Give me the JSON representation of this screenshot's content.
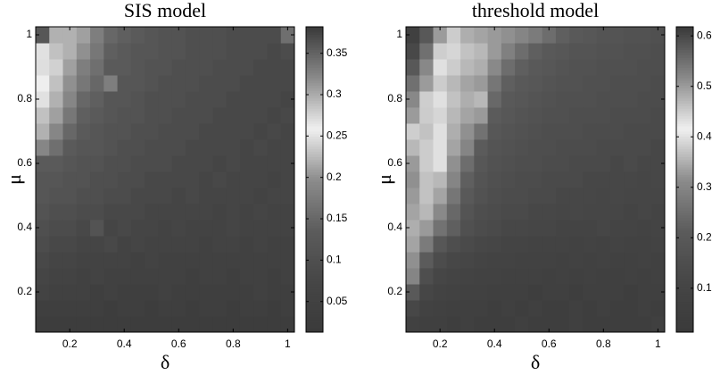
{
  "chart_data": [
    {
      "type": "heatmap",
      "title": "SIS model",
      "xlabel": "δ",
      "ylabel": "μ",
      "x": [
        0.1,
        0.15,
        0.2,
        0.25,
        0.3,
        0.35,
        0.4,
        0.45,
        0.5,
        0.55,
        0.6,
        0.65,
        0.7,
        0.75,
        0.8,
        0.85,
        0.9,
        0.95,
        1.0
      ],
      "y": [
        0.1,
        0.15,
        0.2,
        0.25,
        0.3,
        0.35,
        0.4,
        0.45,
        0.5,
        0.55,
        0.6,
        0.65,
        0.7,
        0.75,
        0.8,
        0.85,
        0.9,
        0.95,
        1.0
      ],
      "z": [
        [
          0.03,
          0.03,
          0.03,
          0.03,
          0.03,
          0.03,
          0.03,
          0.03,
          0.03,
          0.03,
          0.03,
          0.03,
          0.03,
          0.03,
          0.03,
          0.03,
          0.03,
          0.03,
          0.03
        ],
        [
          0.04,
          0.04,
          0.04,
          0.04,
          0.04,
          0.03,
          0.04,
          0.04,
          0.03,
          0.04,
          0.04,
          0.03,
          0.04,
          0.04,
          0.03,
          0.04,
          0.04,
          0.03,
          0.04
        ],
        [
          0.06,
          0.05,
          0.05,
          0.05,
          0.04,
          0.05,
          0.04,
          0.04,
          0.04,
          0.05,
          0.04,
          0.04,
          0.04,
          0.04,
          0.04,
          0.04,
          0.05,
          0.04,
          0.04
        ],
        [
          0.07,
          0.06,
          0.06,
          0.05,
          0.06,
          0.05,
          0.05,
          0.05,
          0.05,
          0.05,
          0.05,
          0.04,
          0.05,
          0.05,
          0.04,
          0.05,
          0.05,
          0.04,
          0.05
        ],
        [
          0.08,
          0.07,
          0.07,
          0.06,
          0.06,
          0.06,
          0.06,
          0.05,
          0.06,
          0.05,
          0.05,
          0.05,
          0.05,
          0.05,
          0.05,
          0.05,
          0.05,
          0.05,
          0.05
        ],
        [
          0.09,
          0.08,
          0.08,
          0.07,
          0.07,
          0.08,
          0.06,
          0.07,
          0.06,
          0.06,
          0.06,
          0.06,
          0.05,
          0.06,
          0.06,
          0.05,
          0.06,
          0.05,
          0.05
        ],
        [
          0.1,
          0.09,
          0.09,
          0.08,
          0.11,
          0.07,
          0.08,
          0.07,
          0.07,
          0.06,
          0.07,
          0.06,
          0.06,
          0.06,
          0.07,
          0.06,
          0.06,
          0.06,
          0.06
        ],
        [
          0.11,
          0.1,
          0.1,
          0.09,
          0.09,
          0.08,
          0.08,
          0.08,
          0.07,
          0.07,
          0.07,
          0.07,
          0.07,
          0.06,
          0.07,
          0.06,
          0.07,
          0.06,
          0.06
        ],
        [
          0.12,
          0.11,
          0.11,
          0.1,
          0.1,
          0.09,
          0.09,
          0.08,
          0.08,
          0.08,
          0.07,
          0.08,
          0.07,
          0.07,
          0.07,
          0.07,
          0.06,
          0.07,
          0.07
        ],
        [
          0.12,
          0.12,
          0.11,
          0.11,
          0.1,
          0.1,
          0.09,
          0.09,
          0.08,
          0.08,
          0.08,
          0.08,
          0.07,
          0.08,
          0.07,
          0.07,
          0.07,
          0.06,
          0.07
        ],
        [
          0.13,
          0.13,
          0.12,
          0.11,
          0.11,
          0.1,
          0.1,
          0.09,
          0.09,
          0.09,
          0.08,
          0.08,
          0.08,
          0.07,
          0.08,
          0.07,
          0.07,
          0.07,
          0.07
        ],
        [
          0.19,
          0.16,
          0.13,
          0.12,
          0.12,
          0.11,
          0.1,
          0.1,
          0.09,
          0.09,
          0.09,
          0.08,
          0.08,
          0.08,
          0.08,
          0.07,
          0.08,
          0.07,
          0.07
        ],
        [
          0.22,
          0.19,
          0.15,
          0.13,
          0.12,
          0.11,
          0.11,
          0.1,
          0.1,
          0.09,
          0.09,
          0.09,
          0.08,
          0.08,
          0.08,
          0.08,
          0.07,
          0.08,
          0.07
        ],
        [
          0.23,
          0.21,
          0.17,
          0.14,
          0.13,
          0.12,
          0.11,
          0.11,
          0.1,
          0.1,
          0.09,
          0.09,
          0.09,
          0.08,
          0.08,
          0.08,
          0.08,
          0.07,
          0.08
        ],
        [
          0.25,
          0.22,
          0.19,
          0.15,
          0.14,
          0.12,
          0.12,
          0.11,
          0.1,
          0.1,
          0.1,
          0.09,
          0.09,
          0.09,
          0.08,
          0.08,
          0.08,
          0.08,
          0.07
        ],
        [
          0.26,
          0.23,
          0.2,
          0.17,
          0.15,
          0.18,
          0.12,
          0.12,
          0.11,
          0.1,
          0.1,
          0.1,
          0.09,
          0.09,
          0.09,
          0.08,
          0.08,
          0.08,
          0.08
        ],
        [
          0.27,
          0.24,
          0.21,
          0.18,
          0.16,
          0.13,
          0.13,
          0.12,
          0.11,
          0.11,
          0.1,
          0.1,
          0.1,
          0.09,
          0.09,
          0.09,
          0.08,
          0.08,
          0.08
        ],
        [
          0.25,
          0.23,
          0.22,
          0.2,
          0.17,
          0.14,
          0.13,
          0.12,
          0.12,
          0.11,
          0.11,
          0.1,
          0.1,
          0.1,
          0.09,
          0.09,
          0.09,
          0.08,
          0.09
        ],
        [
          0.36,
          0.22,
          0.22,
          0.21,
          0.18,
          0.15,
          0.14,
          0.13,
          0.12,
          0.11,
          0.11,
          0.1,
          0.1,
          0.1,
          0.09,
          0.09,
          0.09,
          0.09,
          0.16
        ]
      ],
      "xlim": [
        0.075,
        1.025
      ],
      "ylim": [
        0.075,
        1.025
      ],
      "xticks": [
        0.2,
        0.4,
        0.6,
        0.8,
        1
      ],
      "yticks": [
        0.2,
        0.4,
        0.6,
        0.8,
        1
      ],
      "clim": [
        0.013,
        0.382
      ],
      "cticks": [
        0.05,
        0.1,
        0.15,
        0.2,
        0.25,
        0.3,
        0.35
      ],
      "colormap": [
        "#3a3a3a",
        "#464646",
        "#5c5c5c",
        "#8c8c8c",
        "#f0f0f0",
        "#8a8a8a",
        "#3a3a3a"
      ]
    },
    {
      "type": "heatmap",
      "title": "threshold model",
      "xlabel": "δ",
      "ylabel": "μ",
      "x": [
        0.1,
        0.15,
        0.2,
        0.25,
        0.3,
        0.35,
        0.4,
        0.45,
        0.5,
        0.55,
        0.6,
        0.65,
        0.7,
        0.75,
        0.8,
        0.85,
        0.9,
        0.95,
        1.0
      ],
      "y": [
        0.1,
        0.15,
        0.2,
        0.25,
        0.3,
        0.35,
        0.4,
        0.45,
        0.5,
        0.55,
        0.6,
        0.65,
        0.7,
        0.75,
        0.8,
        0.85,
        0.9,
        0.95,
        1.0
      ],
      "z": [
        [
          0.07,
          0.06,
          0.06,
          0.05,
          0.06,
          0.05,
          0.05,
          0.05,
          0.06,
          0.05,
          0.05,
          0.05,
          0.06,
          0.05,
          0.05,
          0.05,
          0.05,
          0.05,
          0.06
        ],
        [
          0.12,
          0.08,
          0.07,
          0.06,
          0.06,
          0.06,
          0.05,
          0.06,
          0.05,
          0.06,
          0.05,
          0.05,
          0.06,
          0.05,
          0.06,
          0.05,
          0.05,
          0.06,
          0.05
        ],
        [
          0.2,
          0.11,
          0.09,
          0.08,
          0.07,
          0.07,
          0.06,
          0.06,
          0.06,
          0.05,
          0.06,
          0.06,
          0.05,
          0.06,
          0.06,
          0.06,
          0.05,
          0.06,
          0.06
        ],
        [
          0.3,
          0.15,
          0.11,
          0.1,
          0.09,
          0.08,
          0.08,
          0.07,
          0.07,
          0.07,
          0.06,
          0.07,
          0.06,
          0.07,
          0.06,
          0.06,
          0.07,
          0.06,
          0.07
        ],
        [
          0.32,
          0.21,
          0.14,
          0.12,
          0.11,
          0.1,
          0.09,
          0.09,
          0.08,
          0.08,
          0.08,
          0.07,
          0.08,
          0.07,
          0.08,
          0.07,
          0.07,
          0.08,
          0.07
        ],
        [
          0.34,
          0.28,
          0.19,
          0.15,
          0.13,
          0.12,
          0.11,
          0.1,
          0.1,
          0.09,
          0.09,
          0.09,
          0.08,
          0.09,
          0.08,
          0.09,
          0.08,
          0.08,
          0.09
        ],
        [
          0.35,
          0.33,
          0.26,
          0.22,
          0.16,
          0.14,
          0.13,
          0.12,
          0.12,
          0.11,
          0.11,
          0.1,
          0.1,
          0.1,
          0.11,
          0.1,
          0.1,
          0.09,
          0.1
        ],
        [
          0.34,
          0.36,
          0.31,
          0.24,
          0.18,
          0.15,
          0.14,
          0.13,
          0.13,
          0.12,
          0.12,
          0.11,
          0.12,
          0.11,
          0.11,
          0.11,
          0.1,
          0.11,
          0.1
        ],
        [
          0.33,
          0.37,
          0.34,
          0.27,
          0.2,
          0.17,
          0.15,
          0.14,
          0.14,
          0.13,
          0.13,
          0.12,
          0.12,
          0.12,
          0.11,
          0.12,
          0.11,
          0.11,
          0.11
        ],
        [
          0.32,
          0.37,
          0.36,
          0.3,
          0.22,
          0.18,
          0.16,
          0.15,
          0.14,
          0.14,
          0.13,
          0.13,
          0.13,
          0.12,
          0.12,
          0.12,
          0.12,
          0.11,
          0.12
        ],
        [
          0.33,
          0.38,
          0.4,
          0.32,
          0.25,
          0.19,
          0.17,
          0.16,
          0.15,
          0.15,
          0.14,
          0.14,
          0.13,
          0.13,
          0.13,
          0.12,
          0.13,
          0.12,
          0.12
        ],
        [
          0.36,
          0.38,
          0.4,
          0.34,
          0.3,
          0.21,
          0.18,
          0.17,
          0.16,
          0.15,
          0.15,
          0.14,
          0.14,
          0.14,
          0.13,
          0.13,
          0.13,
          0.13,
          0.12
        ],
        [
          0.45,
          0.37,
          0.4,
          0.35,
          0.32,
          0.26,
          0.19,
          0.18,
          0.17,
          0.16,
          0.15,
          0.15,
          0.15,
          0.14,
          0.14,
          0.14,
          0.13,
          0.13,
          0.13
        ],
        [
          0.5,
          0.38,
          0.39,
          0.36,
          0.34,
          0.33,
          0.21,
          0.19,
          0.18,
          0.17,
          0.16,
          0.16,
          0.15,
          0.15,
          0.15,
          0.14,
          0.14,
          0.14,
          0.13
        ],
        [
          0.52,
          0.45,
          0.4,
          0.37,
          0.35,
          0.36,
          0.24,
          0.2,
          0.19,
          0.18,
          0.17,
          0.16,
          0.16,
          0.16,
          0.15,
          0.15,
          0.15,
          0.14,
          0.14
        ],
        [
          0.55,
          0.5,
          0.38,
          0.36,
          0.34,
          0.33,
          0.27,
          0.22,
          0.2,
          0.19,
          0.18,
          0.17,
          0.17,
          0.16,
          0.16,
          0.15,
          0.15,
          0.15,
          0.14
        ],
        [
          0.58,
          0.52,
          0.4,
          0.38,
          0.36,
          0.35,
          0.31,
          0.25,
          0.22,
          0.2,
          0.19,
          0.18,
          0.17,
          0.17,
          0.16,
          0.16,
          0.16,
          0.15,
          0.15
        ],
        [
          0.6,
          0.55,
          0.45,
          0.39,
          0.37,
          0.36,
          0.33,
          0.29,
          0.25,
          0.22,
          0.2,
          0.19,
          0.18,
          0.18,
          0.17,
          0.17,
          0.16,
          0.16,
          0.15
        ],
        [
          0.61,
          0.58,
          0.5,
          0.38,
          0.35,
          0.34,
          0.33,
          0.32,
          0.3,
          0.28,
          0.25,
          0.22,
          0.2,
          0.19,
          0.18,
          0.18,
          0.17,
          0.17,
          0.16
        ]
      ],
      "xlim": [
        0.075,
        1.025
      ],
      "ylim": [
        0.075,
        1.025
      ],
      "xticks": [
        0.2,
        0.4,
        0.6,
        0.8,
        1
      ],
      "yticks": [
        0.2,
        0.4,
        0.6,
        0.8,
        1
      ],
      "clim": [
        0.013,
        0.618
      ],
      "cticks": [
        0.1,
        0.2,
        0.3,
        0.4,
        0.5,
        0.6
      ],
      "colormap": [
        "#3a3a3a",
        "#464646",
        "#5c5c5c",
        "#8c8c8c",
        "#f0f0f0",
        "#8a8a8a",
        "#3a3a3a"
      ]
    }
  ]
}
